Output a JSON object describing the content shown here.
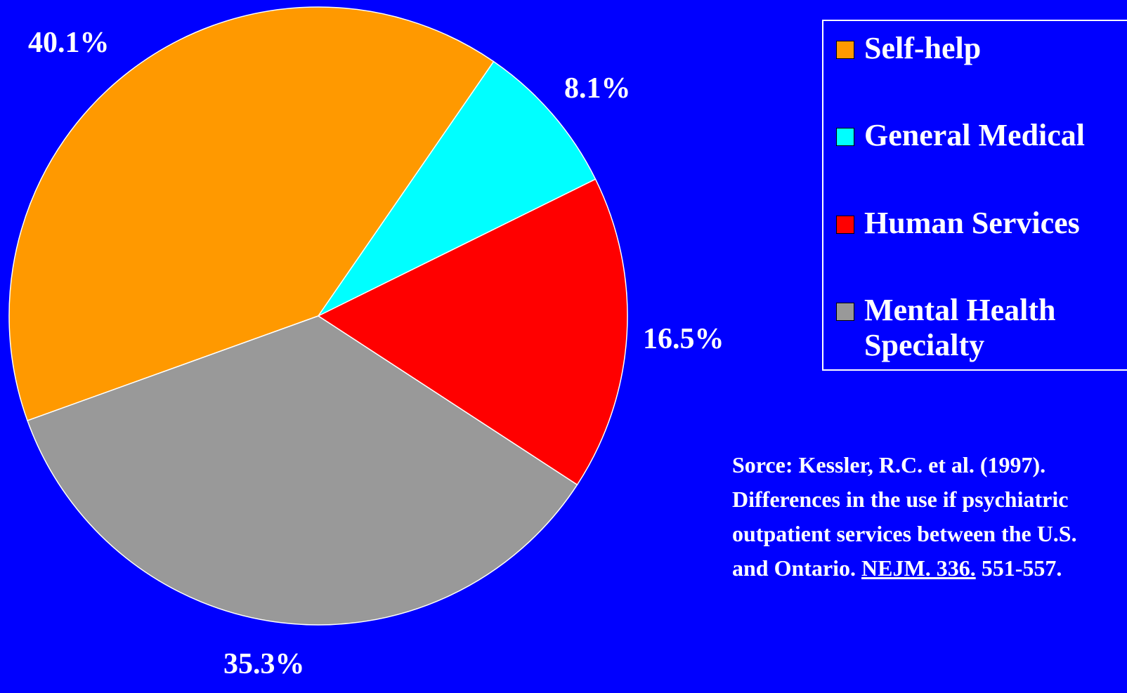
{
  "chart_data": {
    "type": "pie",
    "categories": [
      "Self-help",
      "General Medical",
      "Human Services",
      "Mental Health Specialty"
    ],
    "values": [
      40.1,
      8.1,
      16.5,
      35.3
    ],
    "value_labels": [
      "40.1%",
      "8.1%",
      "16.5%",
      "35.3%"
    ],
    "colors": [
      "#ff9900",
      "#00ffff",
      "#ff0000",
      "#999999"
    ],
    "legend": "right",
    "source": [
      "Sorce: Kessler, R.C. et al. (1997). Differences in the use if psychiatric outpatient services between the U.S. and Ontario.",
      "NEJM. 336.",
      "551-557."
    ]
  }
}
